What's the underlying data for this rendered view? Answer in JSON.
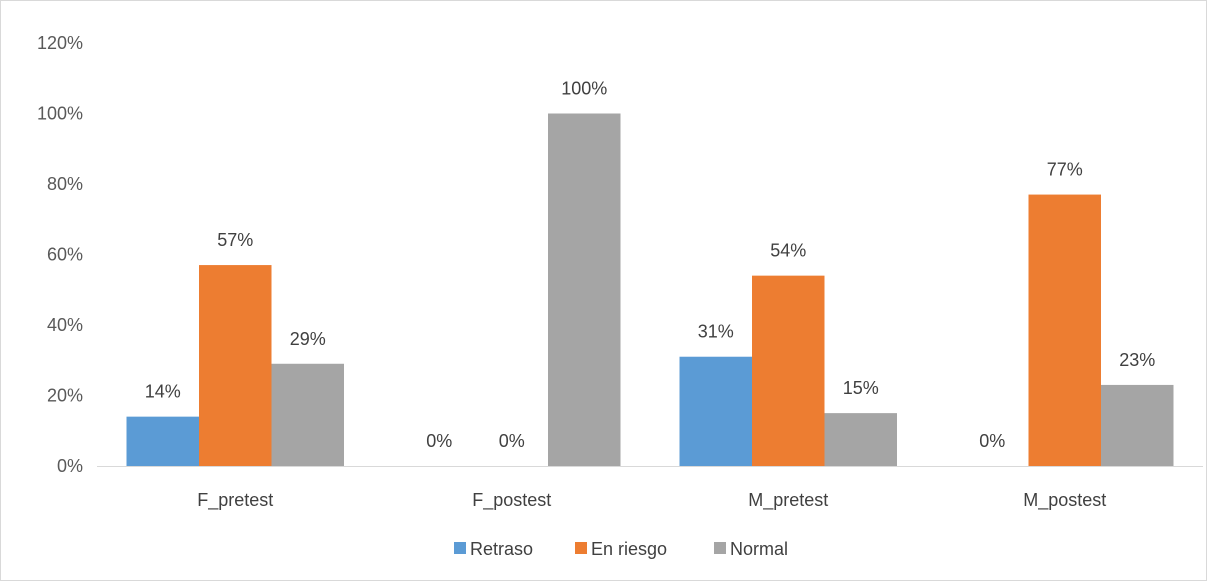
{
  "chart_data": {
    "type": "bar",
    "categories": [
      "F_pretest",
      "F_postest",
      "M_pretest",
      "M_postest"
    ],
    "series": [
      {
        "name": "Retraso",
        "values": [
          14,
          0,
          31,
          0
        ],
        "labels": [
          "14%",
          "0%",
          "31%",
          "0%"
        ]
      },
      {
        "name": "En riesgo",
        "values": [
          57,
          0,
          54,
          77
        ],
        "labels": [
          "57%",
          "0%",
          "54%",
          "77%"
        ]
      },
      {
        "name": "Normal",
        "values": [
          29,
          100,
          15,
          23
        ],
        "labels": [
          "29%",
          "100%",
          "15%",
          "23%"
        ]
      }
    ],
    "ylim": [
      0,
      120
    ],
    "yticks": [
      "0%",
      "20%",
      "40%",
      "60%",
      "80%",
      "100%",
      "120%"
    ],
    "ytick_values": [
      0,
      20,
      40,
      60,
      80,
      100,
      120
    ],
    "grid": false,
    "legend_position": "bottom",
    "colors": [
      "#5b9bd5",
      "#ed7d31",
      "#a5a5a5"
    ],
    "title": "",
    "xlabel": "",
    "ylabel": ""
  }
}
